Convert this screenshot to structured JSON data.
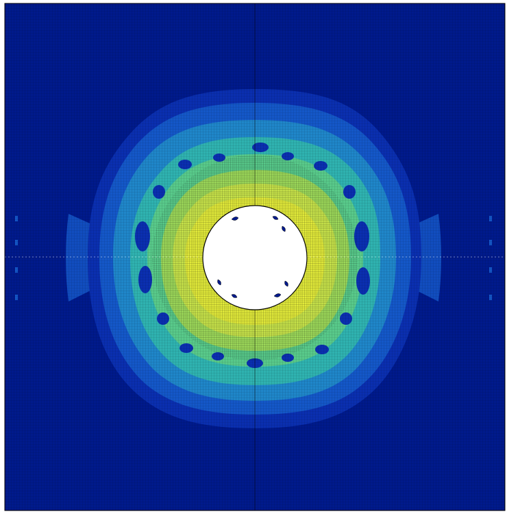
{
  "plot": {
    "type": "finite-element contour plot",
    "colormap": [
      "#001a8c",
      "#0a2fb0",
      "#1457c8",
      "#1f86c9",
      "#2fb2b0",
      "#58c98a",
      "#9cd85a",
      "#e2ea3a"
    ],
    "background": "#ffffff",
    "mesh_line_color": "#000000",
    "hole_fill": "#ffffff",
    "hole_outline": "#000000",
    "contour_levels": 8,
    "peak_level_color": "#e2ea3a",
    "base_level_color": "#001a8c"
  }
}
